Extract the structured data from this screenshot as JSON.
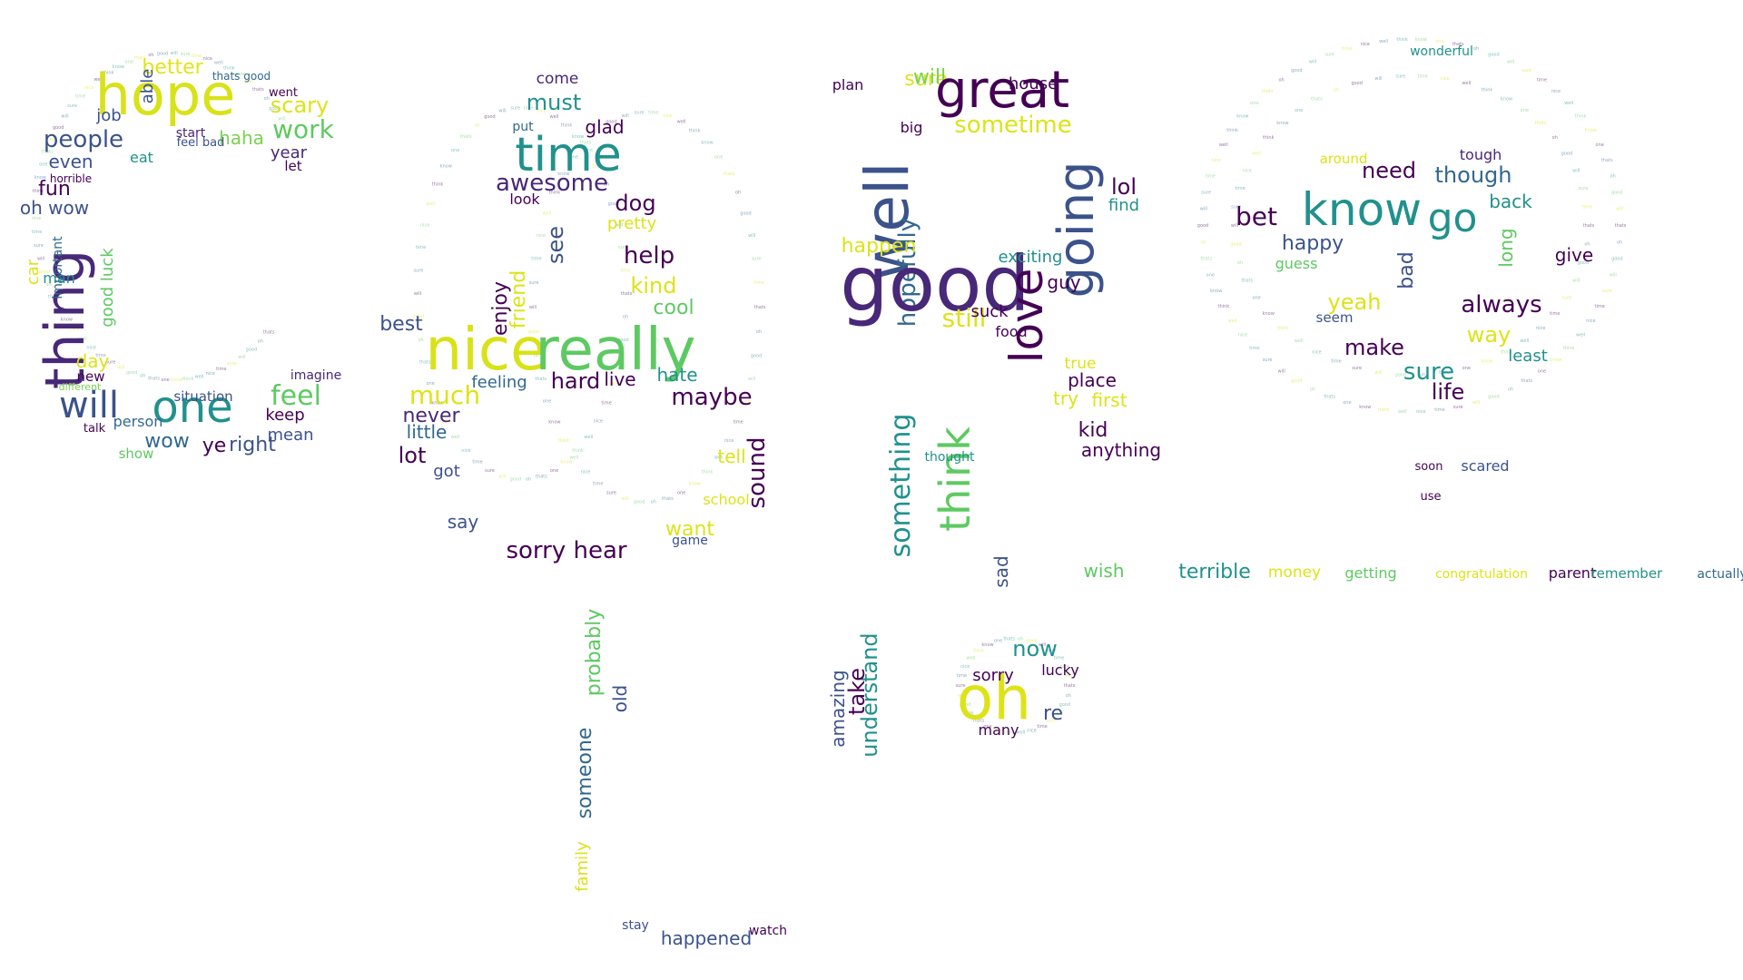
{
  "words": [
    {
      "t": "hope",
      "c": "#d8e219"
    },
    {
      "t": "better",
      "c": "#e2e418"
    },
    {
      "t": "able",
      "c": "#3b528b"
    },
    {
      "t": "thats good",
      "c": "#31688e"
    },
    {
      "t": "went",
      "c": "#440154"
    },
    {
      "t": "scary",
      "c": "#dde318"
    },
    {
      "t": "work",
      "c": "#5ec962"
    },
    {
      "t": "job",
      "c": "#3b528b"
    },
    {
      "t": "people",
      "c": "#3b528b"
    },
    {
      "t": "start",
      "c": "#482878"
    },
    {
      "t": "haha",
      "c": "#7ad151"
    },
    {
      "t": "feel bad",
      "c": "#3b528b"
    },
    {
      "t": "year",
      "c": "#482878"
    },
    {
      "t": "let",
      "c": "#440154"
    },
    {
      "t": "even",
      "c": "#3b528b"
    },
    {
      "t": "eat",
      "c": "#21918c"
    },
    {
      "t": "fun",
      "c": "#440154"
    },
    {
      "t": "horrible",
      "c": "#440154"
    },
    {
      "t": "oh wow",
      "c": "#3b528b"
    },
    {
      "t": "thing",
      "c": "#482878"
    },
    {
      "t": "car",
      "c": "#dde318"
    },
    {
      "t": "important",
      "c": "#31688e"
    },
    {
      "t": "man",
      "c": "#21918c"
    },
    {
      "t": "good luck",
      "c": "#5ec962"
    },
    {
      "t": "day",
      "c": "#dde318"
    },
    {
      "t": "will",
      "c": "#3b528b"
    },
    {
      "t": "one",
      "c": "#21918c"
    },
    {
      "t": "wow",
      "c": "#31688e"
    },
    {
      "t": "ye",
      "c": "#440154"
    },
    {
      "t": "right",
      "c": "#3b528b"
    },
    {
      "t": "feel",
      "c": "#5ec962"
    },
    {
      "t": "keep",
      "c": "#440154"
    },
    {
      "t": "mean",
      "c": "#3b528b"
    },
    {
      "t": "imagine",
      "c": "#482878"
    },
    {
      "t": "situation",
      "c": "#3b528b"
    },
    {
      "t": "person",
      "c": "#31688e"
    },
    {
      "t": "show",
      "c": "#5ec962"
    },
    {
      "t": "new",
      "c": "#440154"
    },
    {
      "t": "different",
      "c": "#7ad151"
    },
    {
      "t": "talk",
      "c": "#440154"
    },
    {
      "t": "come",
      "c": "#482878"
    },
    {
      "t": "must",
      "c": "#21918c"
    },
    {
      "t": "put",
      "c": "#31688e"
    },
    {
      "t": "glad",
      "c": "#440154"
    },
    {
      "t": "time",
      "c": "#21918c"
    },
    {
      "t": "awesome",
      "c": "#482878"
    },
    {
      "t": "look",
      "c": "#440154"
    },
    {
      "t": "dog",
      "c": "#440154"
    },
    {
      "t": "see",
      "c": "#3b528b"
    },
    {
      "t": "pretty",
      "c": "#dde318"
    },
    {
      "t": "help",
      "c": "#440154"
    },
    {
      "t": "kind",
      "c": "#dde318"
    },
    {
      "t": "cool",
      "c": "#5ec962"
    },
    {
      "t": "friend",
      "c": "#dde318"
    },
    {
      "t": "enjoy",
      "c": "#440154"
    },
    {
      "t": "best",
      "c": "#3b528b"
    },
    {
      "t": "nice",
      "c": "#d8e219"
    },
    {
      "t": "really",
      "c": "#5ec962"
    },
    {
      "t": "much",
      "c": "#dde318"
    },
    {
      "t": "hate",
      "c": "#21918c"
    },
    {
      "t": "maybe",
      "c": "#440154"
    },
    {
      "t": "hard",
      "c": "#440154"
    },
    {
      "t": "live",
      "c": "#440154"
    },
    {
      "t": "feeling",
      "c": "#31688e"
    },
    {
      "t": "never",
      "c": "#482878"
    },
    {
      "t": "little",
      "c": "#31688e"
    },
    {
      "t": "lot",
      "c": "#440154"
    },
    {
      "t": "got",
      "c": "#3b528b"
    },
    {
      "t": "sound",
      "c": "#440154"
    },
    {
      "t": "tell",
      "c": "#dde318"
    },
    {
      "t": "school",
      "c": "#dde318"
    },
    {
      "t": "say",
      "c": "#3b528b"
    },
    {
      "t": "want",
      "c": "#dde318"
    },
    {
      "t": "sorry hear",
      "c": "#440154"
    },
    {
      "t": "game",
      "c": "#3b528b"
    },
    {
      "t": "probably",
      "c": "#5ec962"
    },
    {
      "t": "someone",
      "c": "#31688e"
    },
    {
      "t": "old",
      "c": "#3b528b"
    },
    {
      "t": "family",
      "c": "#dde318"
    },
    {
      "t": "happened",
      "c": "#3b528b"
    },
    {
      "t": "watch",
      "c": "#440154"
    },
    {
      "t": "stay",
      "c": "#3b528b"
    },
    {
      "t": "plan",
      "c": "#440154"
    },
    {
      "t": "sure",
      "c": "#dde318"
    },
    {
      "t": "will",
      "c": "#7ad151"
    },
    {
      "t": "great",
      "c": "#440154"
    },
    {
      "t": "house",
      "c": "#440154"
    },
    {
      "t": "sometime",
      "c": "#dde318"
    },
    {
      "t": "well",
      "c": "#3b528b"
    },
    {
      "t": "going",
      "c": "#3b528b"
    },
    {
      "t": "big",
      "c": "#440154"
    },
    {
      "t": "hopefully",
      "c": "#31688e"
    },
    {
      "t": "happen",
      "c": "#dde318"
    },
    {
      "t": "good",
      "c": "#482878"
    },
    {
      "t": "lol",
      "c": "#440154"
    },
    {
      "t": "find",
      "c": "#21918c"
    },
    {
      "t": "love",
      "c": "#440154"
    },
    {
      "t": "exciting",
      "c": "#21918c"
    },
    {
      "t": "guy",
      "c": "#440154"
    },
    {
      "t": "still",
      "c": "#dde318"
    },
    {
      "t": "suck",
      "c": "#440154"
    },
    {
      "t": "something",
      "c": "#21918c"
    },
    {
      "t": "think",
      "c": "#5ec962"
    },
    {
      "t": "food",
      "c": "#440154"
    },
    {
      "t": "place",
      "c": "#440154"
    },
    {
      "t": "true",
      "c": "#dde318"
    },
    {
      "t": "try",
      "c": "#dde318"
    },
    {
      "t": "first",
      "c": "#dde318"
    },
    {
      "t": "kid",
      "c": "#440154"
    },
    {
      "t": "anything",
      "c": "#440154"
    },
    {
      "t": "thought",
      "c": "#21918c"
    },
    {
      "t": "sad",
      "c": "#3b528b"
    },
    {
      "t": "wish",
      "c": "#5ec962"
    },
    {
      "t": "terrible",
      "c": "#21918c"
    },
    {
      "t": "money",
      "c": "#dde318"
    },
    {
      "t": "getting",
      "c": "#5ec962"
    },
    {
      "t": "congratulation",
      "c": "#dde318"
    },
    {
      "t": "parent",
      "c": "#440154"
    },
    {
      "t": "remember",
      "c": "#21918c"
    },
    {
      "t": "actually",
      "c": "#31688e"
    },
    {
      "t": "now",
      "c": "#21918c"
    },
    {
      "t": "oh",
      "c": "#dde318"
    },
    {
      "t": "sorry",
      "c": "#440154"
    },
    {
      "t": "lucky",
      "c": "#440154"
    },
    {
      "t": "re",
      "c": "#3b528b"
    },
    {
      "t": "many",
      "c": "#440154"
    },
    {
      "t": "understand",
      "c": "#21918c"
    },
    {
      "t": "take",
      "c": "#440154"
    },
    {
      "t": "amazing",
      "c": "#3b528b"
    },
    {
      "t": "wonderful",
      "c": "#21918c"
    },
    {
      "t": "know",
      "c": "#21918c"
    },
    {
      "t": "need",
      "c": "#440154"
    },
    {
      "t": "though",
      "c": "#31688e"
    },
    {
      "t": "tough",
      "c": "#482878"
    },
    {
      "t": "go",
      "c": "#21918c"
    },
    {
      "t": "back",
      "c": "#21918c"
    },
    {
      "t": "bet",
      "c": "#440154"
    },
    {
      "t": "happy",
      "c": "#3b528b"
    },
    {
      "t": "guess",
      "c": "#5ec962"
    },
    {
      "t": "yeah",
      "c": "#dde318"
    },
    {
      "t": "always",
      "c": "#440154"
    },
    {
      "t": "give",
      "c": "#440154"
    },
    {
      "t": "long",
      "c": "#5ec962"
    },
    {
      "t": "bad",
      "c": "#3b528b"
    },
    {
      "t": "seem",
      "c": "#3b528b"
    },
    {
      "t": "make",
      "c": "#440154"
    },
    {
      "t": "sure",
      "c": "#21918c"
    },
    {
      "t": "life",
      "c": "#440154"
    },
    {
      "t": "way",
      "c": "#dde318"
    },
    {
      "t": "least",
      "c": "#21918c"
    },
    {
      "t": "around",
      "c": "#dde318"
    },
    {
      "t": "soon",
      "c": "#440154"
    },
    {
      "t": "scared",
      "c": "#3b528b"
    },
    {
      "t": "use",
      "c": "#440154"
    }
  ]
}
